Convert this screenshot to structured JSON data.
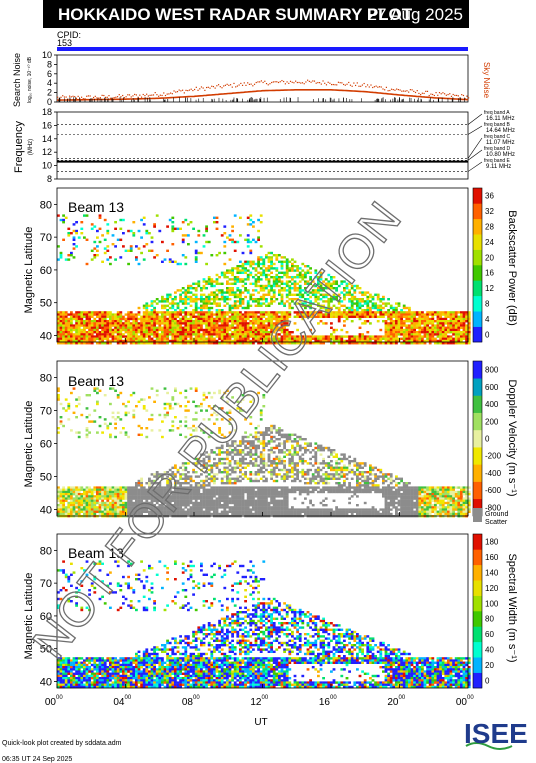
{
  "header": {
    "title": "HOKKAIDO WEST RADAR SUMMARY PLOT",
    "date": "27 Aug 2025",
    "cpid_label": "CPID:",
    "cpid_value": "153"
  },
  "colors": {
    "cpid_bar": "#1a1aff",
    "noise": "#d23c00",
    "ground_scatter": "#8c8c8c",
    "banner_bg": "#000000",
    "logo_blue": "#1f3b8c",
    "logo_green": "#2e9b3e"
  },
  "chart_data": [
    {
      "type": "line",
      "name": "noise",
      "ylabel": "Search Noise",
      "ylabel_sub": "log₁₀ noise, 10⁻¹⁰ dB",
      "right_label": "Sky Noise",
      "ylim": [
        0,
        10
      ],
      "yticks": [
        0,
        2,
        4,
        6,
        8,
        10
      ],
      "x_hours": [
        0,
        2,
        4,
        6,
        8,
        10,
        12,
        14,
        16,
        18,
        20,
        22,
        24
      ],
      "search_noise": [
        0.4,
        0.5,
        0.6,
        0.8,
        1.2,
        1.8,
        2.4,
        2.6,
        2.6,
        2.2,
        1.5,
        0.9,
        0.5
      ],
      "sky_noise": [
        1.0,
        1.1,
        1.3,
        1.8,
        2.8,
        3.6,
        4.2,
        4.4,
        4.2,
        3.6,
        2.6,
        1.8,
        1.2
      ]
    },
    {
      "type": "line",
      "name": "frequency",
      "ylabel": "Frequency",
      "ylabel_sub": "(MHz)",
      "ylim": [
        8,
        18
      ],
      "yticks": [
        8,
        10,
        12,
        14,
        16,
        18
      ],
      "bands": [
        {
          "label": "freq band A",
          "value": "16.11 MHz",
          "mhz": 16.11
        },
        {
          "label": "freq band B",
          "value": "14.64 MHz",
          "mhz": 14.64
        },
        {
          "label": "freq band C",
          "value": "11.07 MHz",
          "mhz": 11.07
        },
        {
          "label": "freq band D",
          "value": "10.80 MHz",
          "mhz": 10.8
        },
        {
          "label": "freq band E",
          "value": "9.11 MHz",
          "mhz": 9.11
        }
      ],
      "operating_mhz": 10.6
    },
    {
      "type": "heatmap",
      "name": "power",
      "beam": "Beam 13",
      "ylabel": "Magnetic Latitude",
      "ylim": [
        38,
        85
      ],
      "yticks": [
        40,
        50,
        60,
        70,
        80
      ],
      "cbar_label": "Backscatter Power (dB)",
      "cbar_ticks": [
        0,
        4,
        8,
        12,
        16,
        20,
        24,
        28,
        32,
        36
      ],
      "cbar_colors": [
        "#2020ff",
        "#00b4ff",
        "#00ffd0",
        "#00e070",
        "#40c800",
        "#a0e000",
        "#e8e000",
        "#ffb000",
        "#ff6000",
        "#e01000"
      ]
    },
    {
      "type": "heatmap",
      "name": "velocity",
      "beam": "Beam 13",
      "ylabel": "Magnetic Latitude",
      "ylim": [
        38,
        85
      ],
      "yticks": [
        40,
        50,
        60,
        70,
        80
      ],
      "cbar_label": "Doppler Velocity (m s⁻¹)",
      "cbar_ticks": [
        -800,
        -600,
        -400,
        -200,
        0,
        200,
        400,
        600,
        800
      ],
      "cbar_colors": [
        "#e01000",
        "#ff6000",
        "#ffb000",
        "#f0e800",
        "#e8f0a0",
        "#a0e060",
        "#40c040",
        "#00a0c0",
        "#2020ff"
      ],
      "gs_label_1": "Ground",
      "gs_label_2": "Scatter"
    },
    {
      "type": "heatmap",
      "name": "width",
      "beam": "Beam 13",
      "ylabel": "Magnetic Latitude",
      "ylim": [
        38,
        85
      ],
      "yticks": [
        40,
        50,
        60,
        70,
        80
      ],
      "cbar_label": "Spectral Width (m s⁻¹)",
      "cbar_ticks": [
        0,
        20,
        40,
        60,
        80,
        100,
        120,
        140,
        160,
        180
      ],
      "cbar_colors": [
        "#2020ff",
        "#00b4ff",
        "#00ffd0",
        "#00e070",
        "#40c800",
        "#a0e000",
        "#e8e000",
        "#ffb000",
        "#ff6000",
        "#e01000"
      ]
    }
  ],
  "time_axis": {
    "label": "UT",
    "ticks": [
      {
        "h": 0,
        "base": "00",
        "sup": "00"
      },
      {
        "h": 4,
        "base": "04",
        "sup": "00"
      },
      {
        "h": 8,
        "base": "08",
        "sup": "00"
      },
      {
        "h": 12,
        "base": "12",
        "sup": "00"
      },
      {
        "h": 16,
        "base": "16",
        "sup": "00"
      },
      {
        "h": 20,
        "base": "20",
        "sup": "00"
      },
      {
        "h": 24,
        "base": "00",
        "sup": "00"
      }
    ]
  },
  "watermark": "NOT FOR PUBLICATION",
  "footer": {
    "line1": "Quick-look plot created by sddata.adm",
    "line2": "06:35 UT 24 Sep 2025"
  },
  "logo": {
    "text": "ISEE"
  }
}
